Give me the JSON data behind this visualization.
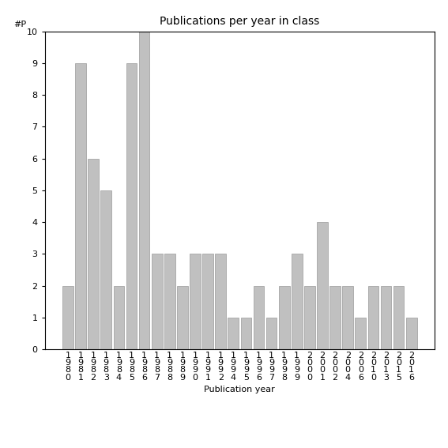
{
  "title": "Publications per year in class",
  "xlabel": "Publication year",
  "ylabel": "#P",
  "bar_color": "#c0c0c0",
  "bar_edgecolor": "#999999",
  "ylim": [
    0,
    10
  ],
  "yticks": [
    0,
    1,
    2,
    3,
    4,
    5,
    6,
    7,
    8,
    9,
    10
  ],
  "categories": [
    "1980",
    "1981",
    "1982",
    "1983",
    "1984",
    "1985",
    "1986",
    "1987",
    "1988",
    "1989",
    "1990",
    "1991",
    "1992",
    "1994",
    "1995",
    "1996",
    "1997",
    "1998",
    "1999",
    "2000",
    "2001",
    "2002",
    "2004",
    "2006",
    "2010",
    "2013",
    "2015",
    "2016"
  ],
  "values": [
    2,
    9,
    6,
    5,
    2,
    9,
    10,
    3,
    3,
    2,
    3,
    3,
    3,
    1,
    1,
    2,
    1,
    2,
    3,
    2,
    4,
    2,
    2,
    1,
    2,
    2,
    2,
    1
  ],
  "figsize": [
    5.67,
    5.67
  ],
  "dpi": 100,
  "title_fontsize": 10,
  "axis_label_fontsize": 8,
  "tick_fontsize": 8,
  "ylabel_fontsize": 8
}
